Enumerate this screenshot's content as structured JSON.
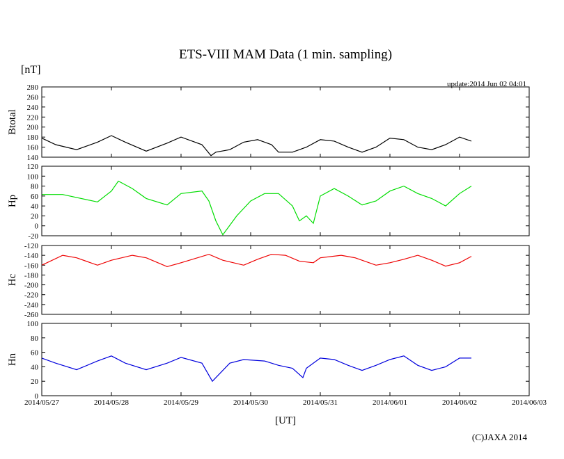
{
  "chart_data": {
    "type": "line",
    "title": "ETS-VIII MAM Data (1 min. sampling)",
    "unit_label": "[nT]",
    "update_text": "update:2014 Jun 02 04:01",
    "xlabel": "[UT]",
    "copyright": "(C)JAXA 2014",
    "x_ticks": [
      "2014/05/27",
      "2014/05/28",
      "2014/05/29",
      "2014/05/30",
      "2014/05/31",
      "2014/06/01",
      "2014/06/02",
      "2014/06/03"
    ],
    "xlim": [
      0,
      7
    ],
    "panels": [
      {
        "name": "Btotal",
        "color": "#000000",
        "ylim": [
          140,
          280
        ],
        "yticks": [
          140,
          160,
          180,
          200,
          220,
          240,
          260,
          280
        ],
        "x": [
          0.0,
          0.2,
          0.5,
          0.8,
          1.0,
          1.2,
          1.5,
          1.8,
          2.0,
          2.3,
          2.43,
          2.5,
          2.7,
          2.9,
          3.1,
          3.3,
          3.4,
          3.6,
          3.7,
          3.8,
          4.0,
          4.2,
          4.4,
          4.6,
          4.8,
          5.0,
          5.2,
          5.4,
          5.6,
          5.8,
          6.0,
          6.17
        ],
        "y": [
          178,
          165,
          155,
          170,
          183,
          170,
          152,
          168,
          180,
          165,
          143,
          150,
          155,
          170,
          175,
          165,
          150,
          150,
          155,
          160,
          175,
          172,
          160,
          150,
          160,
          178,
          175,
          160,
          155,
          165,
          180,
          172
        ]
      },
      {
        "name": "Hp",
        "color": "#00dd00",
        "ylim": [
          -20,
          120
        ],
        "yticks": [
          -20,
          0,
          20,
          40,
          60,
          80,
          100,
          120
        ],
        "x": [
          0.0,
          0.3,
          0.8,
          1.0,
          1.1,
          1.3,
          1.5,
          1.8,
          2.0,
          2.3,
          2.4,
          2.5,
          2.6,
          2.8,
          3.0,
          3.2,
          3.4,
          3.6,
          3.7,
          3.8,
          3.9,
          4.0,
          4.2,
          4.4,
          4.6,
          4.8,
          5.0,
          5.2,
          5.4,
          5.6,
          5.8,
          6.0,
          6.17
        ],
        "y": [
          63,
          63,
          48,
          70,
          90,
          75,
          55,
          42,
          65,
          70,
          50,
          10,
          -18,
          20,
          50,
          65,
          65,
          40,
          10,
          20,
          5,
          60,
          75,
          60,
          42,
          50,
          70,
          80,
          65,
          55,
          40,
          65,
          80
        ]
      },
      {
        "name": "Hc",
        "color": "#ee0000",
        "ylim": [
          -260,
          -120
        ],
        "yticks": [
          -260,
          -240,
          -220,
          -200,
          -180,
          -160,
          -140,
          -120
        ],
        "x": [
          0.0,
          0.3,
          0.5,
          0.8,
          1.0,
          1.3,
          1.5,
          1.8,
          2.0,
          2.4,
          2.6,
          2.9,
          3.1,
          3.3,
          3.5,
          3.7,
          3.9,
          4.0,
          4.3,
          4.5,
          4.8,
          5.0,
          5.2,
          5.4,
          5.6,
          5.8,
          6.0,
          6.17
        ],
        "y": [
          -160,
          -140,
          -145,
          -160,
          -150,
          -140,
          -145,
          -163,
          -155,
          -138,
          -150,
          -160,
          -148,
          -138,
          -140,
          -152,
          -155,
          -145,
          -140,
          -145,
          -160,
          -155,
          -148,
          -140,
          -150,
          -162,
          -155,
          -142
        ]
      },
      {
        "name": "Hn",
        "color": "#0000dd",
        "ylim": [
          0,
          100
        ],
        "yticks": [
          0,
          20,
          40,
          60,
          80,
          100
        ],
        "x": [
          0.0,
          0.2,
          0.5,
          0.8,
          1.0,
          1.2,
          1.5,
          1.8,
          2.0,
          2.3,
          2.45,
          2.55,
          2.7,
          2.9,
          3.2,
          3.4,
          3.6,
          3.75,
          3.8,
          4.0,
          4.2,
          4.4,
          4.6,
          4.8,
          5.0,
          5.2,
          5.4,
          5.6,
          5.8,
          6.0,
          6.17
        ],
        "y": [
          52,
          45,
          36,
          48,
          55,
          45,
          36,
          45,
          53,
          45,
          20,
          30,
          45,
          50,
          48,
          42,
          38,
          25,
          38,
          52,
          50,
          42,
          35,
          42,
          50,
          55,
          42,
          35,
          40,
          52,
          52
        ]
      }
    ]
  }
}
